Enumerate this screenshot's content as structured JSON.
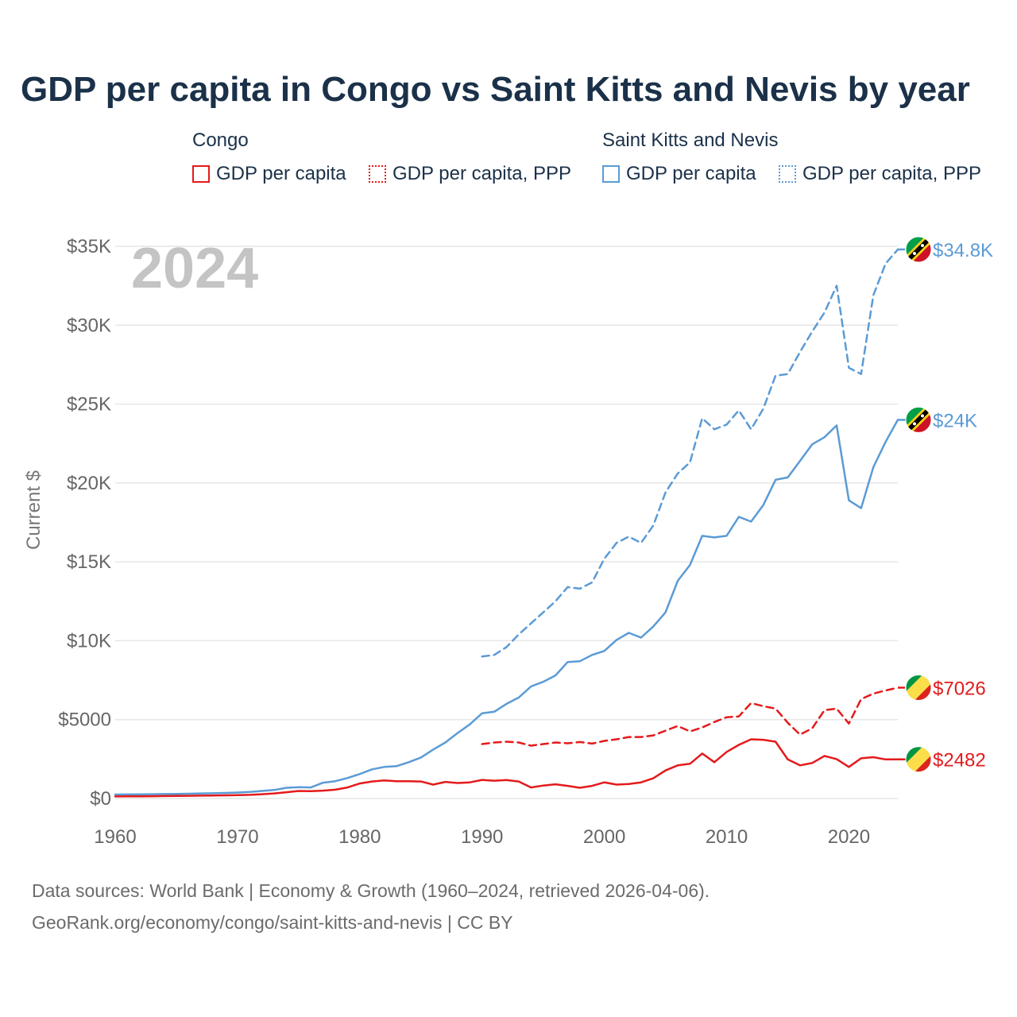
{
  "title": "GDP per capita in Congo vs Saint Kitts and Nevis by year",
  "legend": {
    "groups": [
      {
        "name": "Congo",
        "items": [
          {
            "label": "GDP per capita",
            "color": "#e41a1c",
            "style": "solid"
          },
          {
            "label": "GDP per capita, PPP",
            "color": "#e41a1c",
            "style": "dotted"
          }
        ]
      },
      {
        "name": "Saint Kitts and Nevis",
        "items": [
          {
            "label": "GDP per capita",
            "color": "#5b9bd5",
            "style": "solid"
          },
          {
            "label": "GDP per capita, PPP",
            "color": "#5b9bd5",
            "style": "dotted"
          }
        ]
      }
    ]
  },
  "footer": {
    "line1": "Data sources: World Bank | Economy & Growth (1960–2024, retrieved 2026-04-06).",
    "line2": "GeoRank.org/economy/congo/saint-kitts-and-nevis | CC BY"
  },
  "chart_data": {
    "type": "line",
    "year_label": "2024",
    "ylabel": "Current $",
    "xlim": [
      1960,
      2024
    ],
    "ylim": [
      0,
      35000
    ],
    "xticks": [
      {
        "value": 1960,
        "label": "1960"
      },
      {
        "value": 1970,
        "label": "1970"
      },
      {
        "value": 1980,
        "label": "1980"
      },
      {
        "value": 1990,
        "label": "1990"
      },
      {
        "value": 2000,
        "label": "2000"
      },
      {
        "value": 2010,
        "label": "2010"
      },
      {
        "value": 2020,
        "label": "2020"
      }
    ],
    "yticks": [
      {
        "value": 0,
        "label": "$0"
      },
      {
        "value": 5000,
        "label": "$5000"
      },
      {
        "value": 10000,
        "label": "$10K"
      },
      {
        "value": 15000,
        "label": "$15K"
      },
      {
        "value": 20000,
        "label": "$20K"
      },
      {
        "value": 25000,
        "label": "$25K"
      },
      {
        "value": 30000,
        "label": "$30K"
      },
      {
        "value": 35000,
        "label": "$35K"
      }
    ],
    "grid": true,
    "series": [
      {
        "name": "Saint Kitts and Nevis GDP per capita, PPP",
        "country": "kn",
        "color": "#5b9bd5",
        "dash": "dashed",
        "end_label": "$34.8K",
        "x": [
          1990,
          1991,
          1992,
          1993,
          1994,
          1995,
          1996,
          1997,
          1998,
          1999,
          2000,
          2001,
          2002,
          2003,
          2004,
          2005,
          2006,
          2007,
          2008,
          2009,
          2010,
          2011,
          2012,
          2013,
          2014,
          2015,
          2016,
          2017,
          2018,
          2019,
          2020,
          2021,
          2022,
          2023,
          2024
        ],
        "y": [
          9000,
          9100,
          9600,
          10400,
          11100,
          11800,
          12500,
          13400,
          13300,
          13700,
          15200,
          16200,
          16600,
          16200,
          17300,
          19400,
          20600,
          21300,
          24100,
          23400,
          23700,
          24600,
          23400,
          24700,
          26800,
          26900,
          28300,
          29600,
          30800,
          32500,
          27300,
          26900,
          31900,
          33900,
          34800
        ]
      },
      {
        "name": "Saint Kitts and Nevis GDP per capita",
        "country": "kn",
        "color": "#5b9bd5",
        "dash": "solid",
        "end_label": "$24K",
        "x": [
          1960,
          1961,
          1962,
          1963,
          1964,
          1965,
          1966,
          1967,
          1968,
          1969,
          1970,
          1971,
          1972,
          1973,
          1974,
          1975,
          1976,
          1977,
          1978,
          1979,
          1980,
          1981,
          1982,
          1983,
          1984,
          1985,
          1986,
          1987,
          1988,
          1989,
          1990,
          1991,
          1992,
          1993,
          1994,
          1995,
          1996,
          1997,
          1998,
          1999,
          2000,
          2001,
          2002,
          2003,
          2004,
          2005,
          2006,
          2007,
          2008,
          2009,
          2010,
          2011,
          2012,
          2013,
          2014,
          2015,
          2016,
          2017,
          2018,
          2019,
          2020,
          2021,
          2022,
          2023,
          2024
        ],
        "y": [
          250,
          255,
          260,
          270,
          280,
          290,
          300,
          320,
          330,
          350,
          380,
          420,
          480,
          540,
          680,
          720,
          700,
          1000,
          1100,
          1300,
          1550,
          1850,
          2000,
          2050,
          2300,
          2600,
          3100,
          3550,
          4150,
          4700,
          5400,
          5500,
          6000,
          6400,
          7100,
          7400,
          7800,
          8650,
          8700,
          9100,
          9350,
          10050,
          10500,
          10200,
          10900,
          11800,
          13800,
          14800,
          16650,
          16550,
          16650,
          17850,
          17550,
          18600,
          20200,
          20350,
          21400,
          22450,
          22900,
          23650,
          18900,
          18400,
          21000,
          22600,
          24000
        ]
      },
      {
        "name": "Congo GDP per capita, PPP",
        "country": "cg",
        "color": "#e41a1c",
        "dash": "dashed",
        "end_label": "$7026",
        "x": [
          1990,
          1991,
          1992,
          1993,
          1994,
          1995,
          1996,
          1997,
          1998,
          1999,
          2000,
          2001,
          2002,
          2003,
          2004,
          2005,
          2006,
          2007,
          2008,
          2009,
          2010,
          2011,
          2012,
          2013,
          2014,
          2015,
          2016,
          2017,
          2018,
          2019,
          2020,
          2021,
          2022,
          2023,
          2024
        ],
        "y": [
          3450,
          3550,
          3600,
          3550,
          3350,
          3450,
          3550,
          3500,
          3580,
          3480,
          3650,
          3750,
          3900,
          3900,
          4000,
          4300,
          4600,
          4250,
          4500,
          4850,
          5150,
          5200,
          6050,
          5850,
          5700,
          4800,
          4050,
          4450,
          5600,
          5700,
          4750,
          6300,
          6650,
          6850,
          7026
        ]
      },
      {
        "name": "Congo GDP per capita",
        "country": "cg",
        "color": "#e41a1c",
        "dash": "solid",
        "end_label": "$2482",
        "x": [
          1960,
          1961,
          1962,
          1963,
          1964,
          1965,
          1966,
          1967,
          1968,
          1969,
          1970,
          1971,
          1972,
          1973,
          1974,
          1975,
          1976,
          1977,
          1978,
          1979,
          1980,
          1981,
          1982,
          1983,
          1984,
          1985,
          1986,
          1987,
          1988,
          1989,
          1990,
          1991,
          1992,
          1993,
          1994,
          1995,
          1996,
          1997,
          1998,
          1999,
          2000,
          2001,
          2002,
          2003,
          2004,
          2005,
          2006,
          2007,
          2008,
          2009,
          2010,
          2011,
          2012,
          2013,
          2014,
          2015,
          2016,
          2017,
          2018,
          2019,
          2020,
          2021,
          2022,
          2023,
          2024
        ],
        "y": [
          130,
          135,
          140,
          145,
          155,
          160,
          170,
          180,
          190,
          200,
          210,
          230,
          270,
          320,
          400,
          480,
          470,
          500,
          560,
          700,
          950,
          1080,
          1150,
          1100,
          1100,
          1080,
          880,
          1050,
          980,
          1020,
          1180,
          1130,
          1170,
          1080,
          700,
          820,
          900,
          800,
          680,
          800,
          1020,
          880,
          920,
          1020,
          1280,
          1780,
          2100,
          2200,
          2850,
          2300,
          2950,
          3400,
          3750,
          3720,
          3600,
          2480,
          2100,
          2250,
          2700,
          2500,
          2000,
          2550,
          2620,
          2480,
          2482
        ]
      }
    ]
  }
}
